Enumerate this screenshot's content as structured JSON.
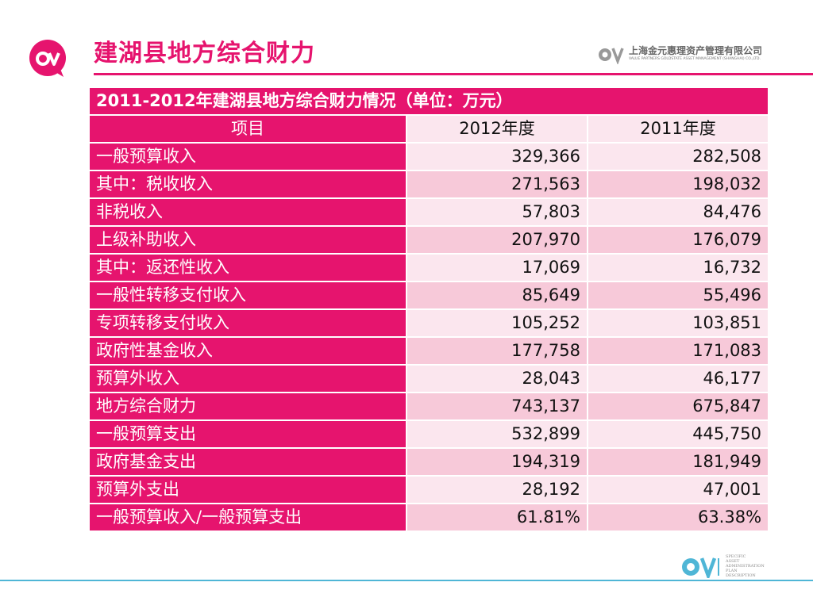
{
  "slide": {
    "title": "建湖县地方综合财力"
  },
  "company": {
    "name": "上海金元惠理资产管理有限公司",
    "name_en": "VALUE PARTNERS GOLDSTATE ASSET MANAGEMENT (SHANGHAI) CO.,LTD."
  },
  "footer": {
    "lines": [
      "SPECIFIC",
      "ASSET",
      "ADMINISTRATION",
      "PLAN",
      "DESCRIPTION"
    ]
  },
  "colors": {
    "accent": "#e6146e",
    "row_light": "#fbe6ee",
    "row_dark": "#f7c9d9",
    "footer_rule": "#4fb6d6"
  },
  "table": {
    "caption": "2011-2012年建湖县地方综合财力情况（单位：万元）",
    "headers": [
      "项目",
      "2012年度",
      "2011年度"
    ],
    "rows": [
      [
        "一般预算收入",
        "329,366",
        "282,508"
      ],
      [
        "其中：税收收入",
        "271,563",
        "198,032"
      ],
      [
        "非税收入",
        "57,803",
        "84,476"
      ],
      [
        "上级补助收入",
        "207,970",
        "176,079"
      ],
      [
        "其中：返还性收入",
        "17,069",
        "16,732"
      ],
      [
        "一般性转移支付收入",
        "85,649",
        "55,496"
      ],
      [
        "专项转移支付收入",
        "105,252",
        "103,851"
      ],
      [
        "政府性基金收入",
        "177,758",
        "171,083"
      ],
      [
        "预算外收入",
        "28,043",
        "46,177"
      ],
      [
        "地方综合财力",
        "743,137",
        "675,847"
      ],
      [
        "一般预算支出",
        "532,899",
        "445,750"
      ],
      [
        "政府基金支出",
        "194,319",
        "181,949"
      ],
      [
        "预算外支出",
        "28,192",
        "47,001"
      ],
      [
        "一般预算收入/一般预算支出",
        "61.81%",
        "63.38%"
      ]
    ]
  }
}
